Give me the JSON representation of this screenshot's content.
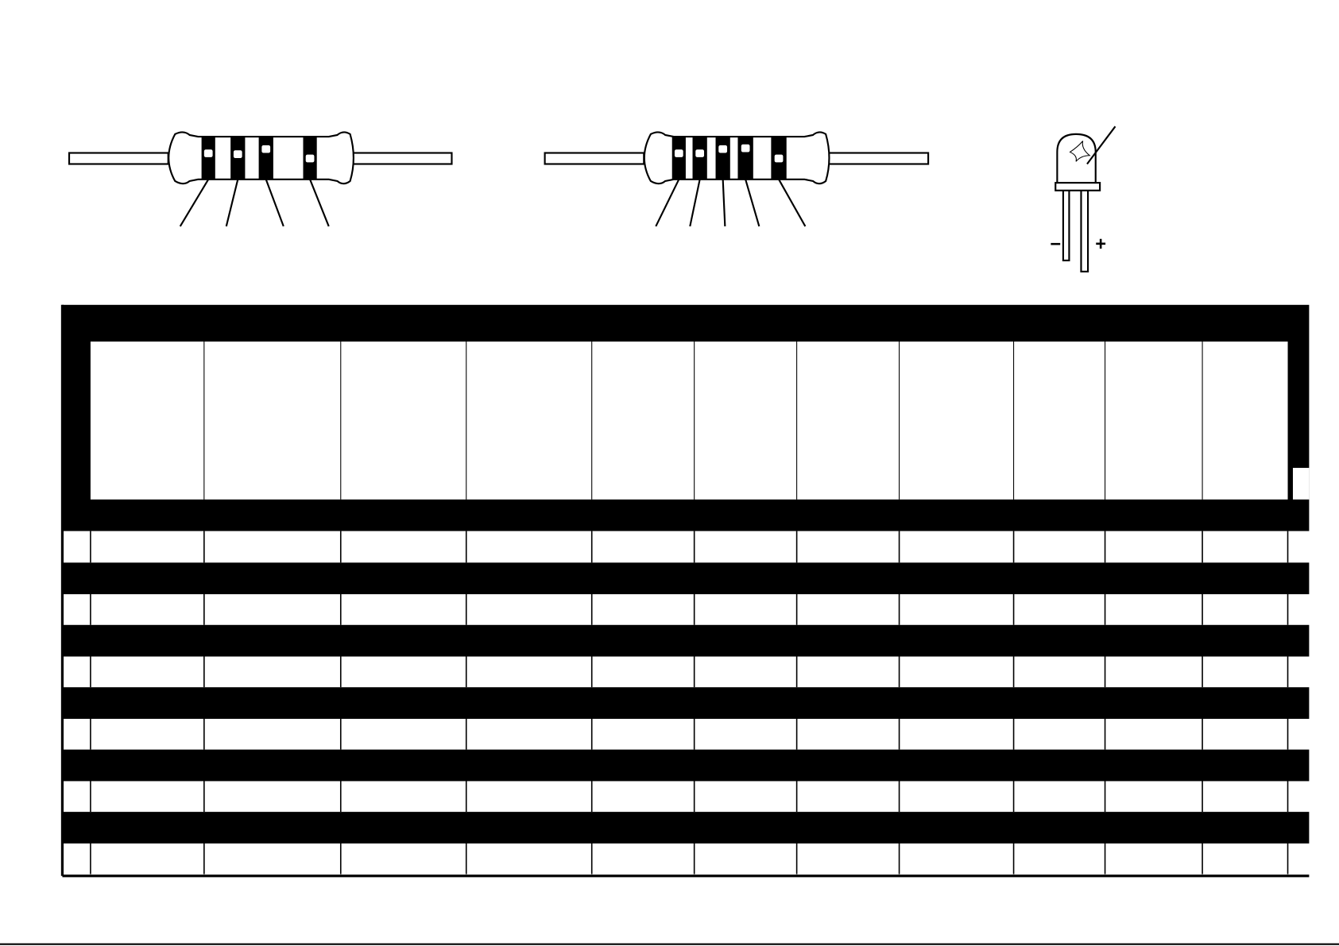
{
  "led": {
    "minus_label": "−",
    "plus_label": "+"
  }
}
